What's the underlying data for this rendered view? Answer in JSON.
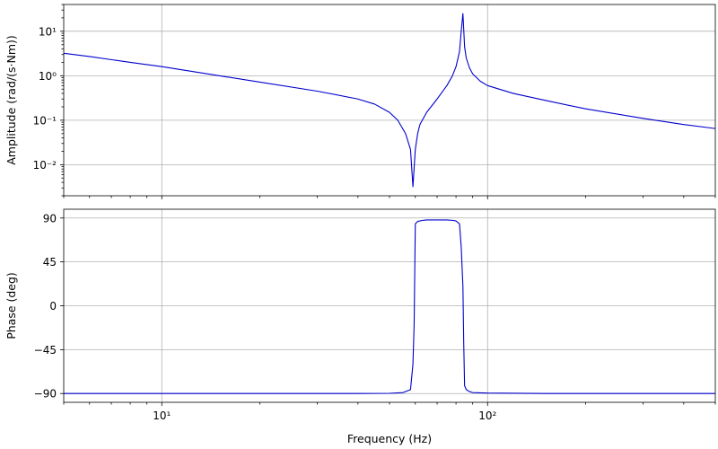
{
  "chart_data": [
    {
      "id": "amplitude",
      "type": "line",
      "ylabel": "Amplitude (rad/(s·Nm))",
      "xlabel": "",
      "xscale": "log",
      "yscale": "log",
      "xlim": [
        5,
        500
      ],
      "ylim": [
        0.002,
        40
      ],
      "grid": true,
      "yticks": [
        0.01,
        0.1,
        1,
        10
      ],
      "ytick_labels": [
        "10⁻²",
        "10⁻¹",
        "10⁰",
        "10¹"
      ],
      "xticks": [
        10,
        100
      ],
      "xtick_labels": [
        "",
        ""
      ],
      "color": "#0000cc",
      "series": [
        {
          "x": [
            5,
            6,
            8,
            10,
            15,
            20,
            30,
            40,
            45,
            50,
            53,
            56,
            58,
            59,
            60,
            61,
            62,
            65,
            70,
            75,
            78,
            80,
            82,
            83,
            84,
            85,
            86,
            88,
            90,
            95,
            100,
            120,
            150,
            200,
            300,
            400,
            500
          ],
          "y": [
            3.2,
            2.7,
            2.0,
            1.6,
            1.0,
            0.72,
            0.45,
            0.3,
            0.23,
            0.15,
            0.1,
            0.05,
            0.022,
            0.0032,
            0.022,
            0.05,
            0.08,
            0.15,
            0.3,
            0.6,
            1.0,
            1.6,
            3.5,
            10,
            25,
            4.5,
            2.5,
            1.5,
            1.1,
            0.75,
            0.6,
            0.4,
            0.28,
            0.18,
            0.11,
            0.08,
            0.065
          ]
        }
      ]
    },
    {
      "id": "phase",
      "type": "line",
      "ylabel": "Phase (deg)",
      "xlabel": "Frequency (Hz)",
      "xscale": "log",
      "xlim": [
        5,
        500
      ],
      "ylim": [
        -99,
        99
      ],
      "grid": true,
      "yticks": [
        90,
        45,
        0,
        -45,
        -90
      ],
      "ytick_labels": [
        "90",
        "45",
        "0",
        "−45",
        "−90"
      ],
      "xticks": [
        10,
        100
      ],
      "xtick_labels": [
        "10¹",
        "10²"
      ],
      "color": "#0000cc",
      "series": [
        {
          "x": [
            5,
            10,
            20,
            40,
            50,
            55,
            58,
            59,
            59.5,
            60,
            61,
            63,
            65,
            70,
            75,
            78,
            80,
            82,
            83,
            84,
            84.5,
            85,
            86,
            88,
            90,
            100,
            150,
            200,
            300,
            500
          ],
          "y": [
            -90,
            -90,
            -90,
            -90,
            -89.8,
            -89,
            -86,
            -60,
            -20,
            84,
            86.5,
            87.5,
            88,
            88,
            88,
            87.6,
            87,
            84,
            60,
            20,
            -40,
            -82,
            -86,
            -88,
            -89,
            -89.5,
            -90,
            -90,
            -90,
            -90
          ]
        }
      ]
    }
  ]
}
